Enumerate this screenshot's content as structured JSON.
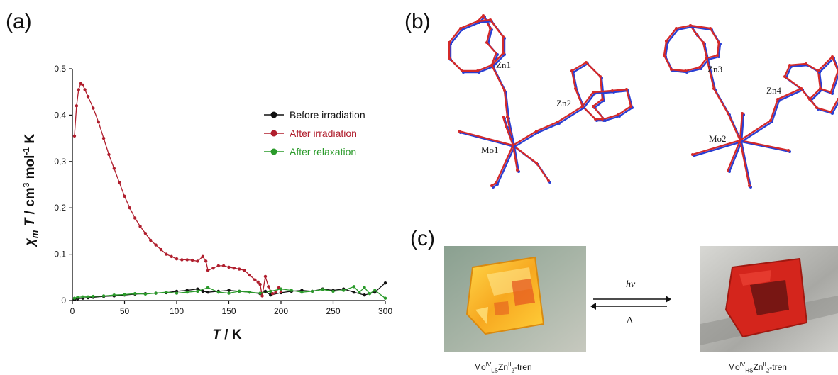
{
  "panels": {
    "a": "(a)",
    "b": "(b)",
    "c": "(c)"
  },
  "chart_data": {
    "type": "line",
    "xlabel": "T / K",
    "ylabel": "χm T / cm3 mol-1 K",
    "xlim": [
      0,
      300
    ],
    "ylim": [
      0,
      0.5
    ],
    "xticks": [
      "0",
      "50",
      "100",
      "150",
      "200",
      "250",
      "300"
    ],
    "yticks": [
      "0",
      "0,1",
      "0,2",
      "0,3",
      "0,4",
      "0,5"
    ],
    "grid": false,
    "legend_position": "right",
    "series": [
      {
        "name": "Before irradiation",
        "color": "#111111",
        "x": [
          2,
          5,
          10,
          15,
          20,
          30,
          40,
          50,
          60,
          70,
          80,
          90,
          100,
          110,
          120,
          125,
          130,
          140,
          150,
          160,
          170,
          180,
          185,
          190,
          200,
          210,
          220,
          230,
          240,
          250,
          260,
          270,
          280,
          290,
          300
        ],
        "y": [
          0.002,
          0.004,
          0.005,
          0.006,
          0.007,
          0.009,
          0.01,
          0.012,
          0.014,
          0.015,
          0.016,
          0.017,
          0.02,
          0.022,
          0.025,
          0.02,
          0.018,
          0.02,
          0.022,
          0.02,
          0.018,
          0.015,
          0.02,
          0.012,
          0.017,
          0.02,
          0.022,
          0.02,
          0.025,
          0.022,
          0.025,
          0.018,
          0.012,
          0.018,
          0.038
        ]
      },
      {
        "name": "After irradiation",
        "color": "#b01e2d",
        "x": [
          2,
          4,
          6,
          8,
          10,
          12,
          15,
          20,
          25,
          30,
          35,
          40,
          45,
          50,
          55,
          60,
          65,
          70,
          75,
          80,
          85,
          90,
          95,
          100,
          105,
          110,
          115,
          120,
          125,
          128,
          130,
          135,
          140,
          145,
          150,
          155,
          160,
          165,
          170,
          175,
          178,
          180,
          182,
          185,
          188,
          190,
          192,
          195,
          198,
          200
        ],
        "y": [
          0.355,
          0.42,
          0.455,
          0.468,
          0.465,
          0.455,
          0.44,
          0.415,
          0.385,
          0.35,
          0.315,
          0.285,
          0.255,
          0.225,
          0.2,
          0.178,
          0.16,
          0.145,
          0.13,
          0.12,
          0.11,
          0.1,
          0.095,
          0.09,
          0.088,
          0.088,
          0.087,
          0.085,
          0.095,
          0.085,
          0.065,
          0.07,
          0.075,
          0.075,
          0.072,
          0.07,
          0.068,
          0.065,
          0.055,
          0.045,
          0.04,
          0.035,
          0.01,
          0.052,
          0.03,
          0.02,
          0.015,
          0.018,
          0.028,
          0.02
        ]
      },
      {
        "name": "After relaxation",
        "color": "#2a9a2a",
        "x": [
          2,
          5,
          10,
          15,
          20,
          30,
          40,
          50,
          60,
          70,
          80,
          90,
          100,
          110,
          120,
          130,
          140,
          150,
          160,
          170,
          180,
          190,
          200,
          210,
          220,
          230,
          240,
          250,
          260,
          270,
          275,
          280,
          285,
          290,
          300
        ],
        "y": [
          0.005,
          0.007,
          0.008,
          0.008,
          0.009,
          0.01,
          0.012,
          0.013,
          0.015,
          0.014,
          0.016,
          0.018,
          0.016,
          0.018,
          0.02,
          0.028,
          0.018,
          0.016,
          0.02,
          0.018,
          0.016,
          0.02,
          0.025,
          0.022,
          0.018,
          0.02,
          0.024,
          0.02,
          0.022,
          0.03,
          0.018,
          0.028,
          0.015,
          0.022,
          0.005
        ]
      }
    ]
  },
  "diagram_b": {
    "labels": [
      "Zn1",
      "Zn2",
      "Mo1",
      "Zn3",
      "Zn4",
      "Mo2"
    ],
    "colors": {
      "red": "#d42a2a",
      "blue": "#2a3fd4",
      "label": "#222222"
    }
  },
  "panel_c": {
    "arrow_top_label": "hν",
    "arrow_bottom_label": "Δ",
    "left_caption": {
      "base": "Mo",
      "sup1": "IV",
      "sub1": "LS",
      "mid": "Zn",
      "sup2": "II",
      "sub2": "2",
      "tail": "-tren"
    },
    "right_caption": {
      "base": "Mo",
      "sup1": "IV",
      "sub1": "HS",
      "mid": "Zn",
      "sup2": "II",
      "sub2": "2",
      "tail": "-tren"
    }
  }
}
